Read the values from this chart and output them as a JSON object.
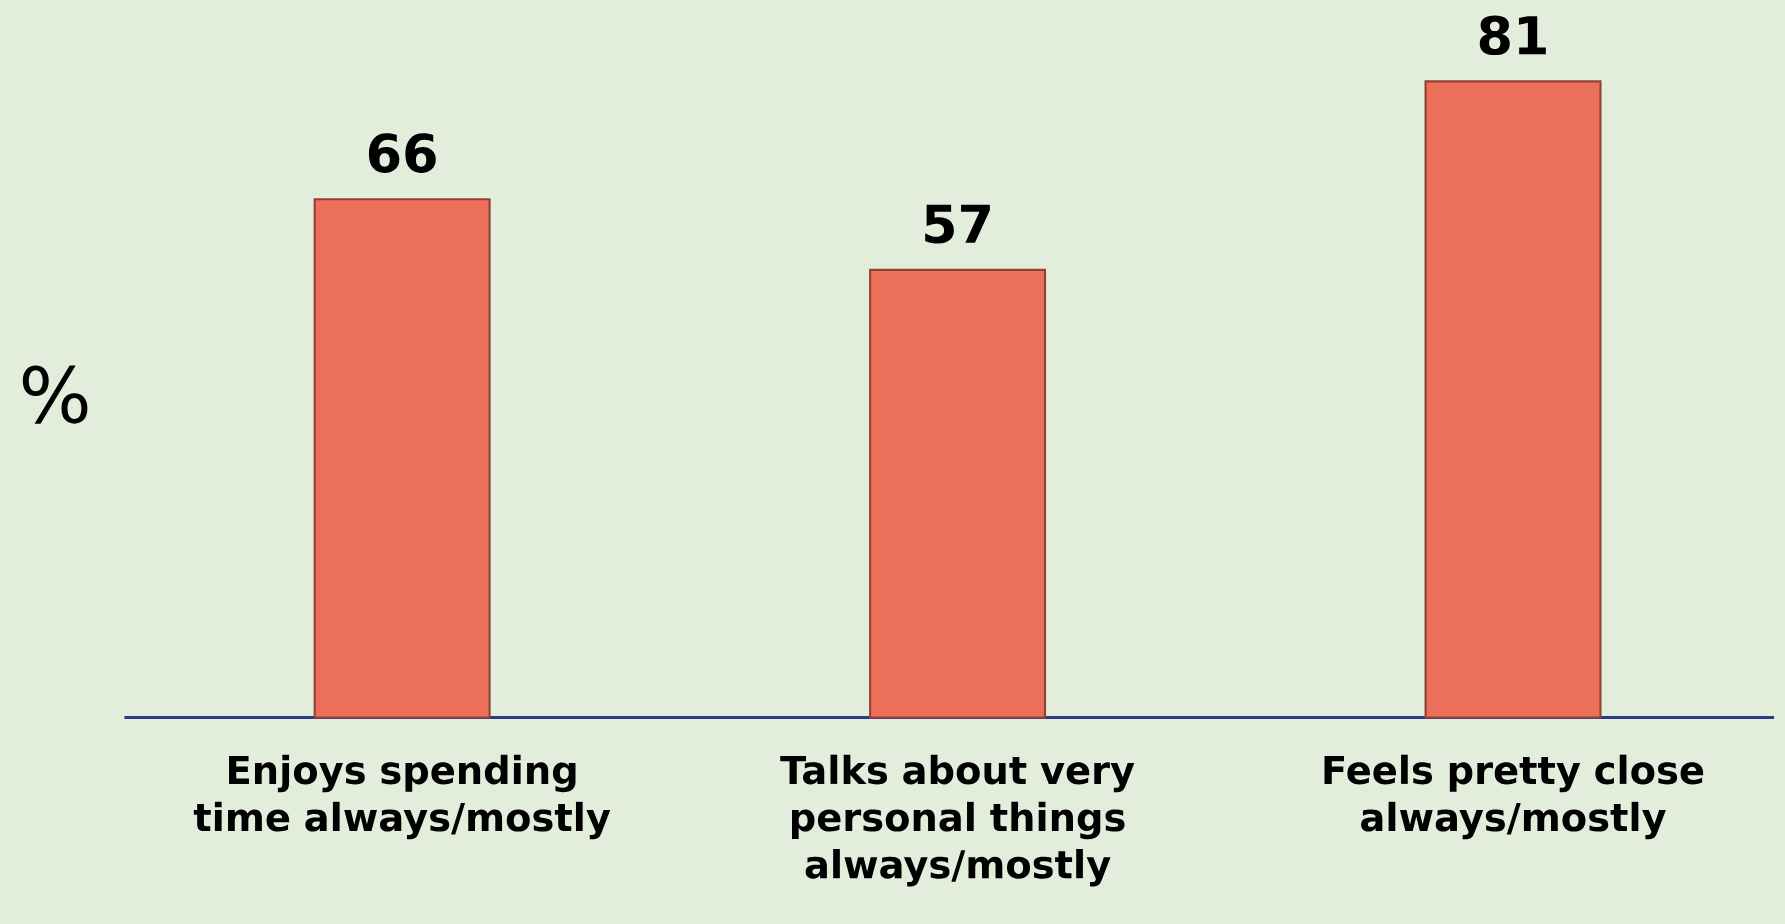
{
  "chart_data": {
    "type": "bar",
    "ylabel": "%",
    "categories": [
      "Enjoys spending time always/mostly",
      "Talks about very personal things always/mostly",
      "Feels pretty close always/mostly"
    ],
    "values": [
      66,
      57,
      81
    ],
    "color": "#ec7059",
    "data_labels": true
  }
}
